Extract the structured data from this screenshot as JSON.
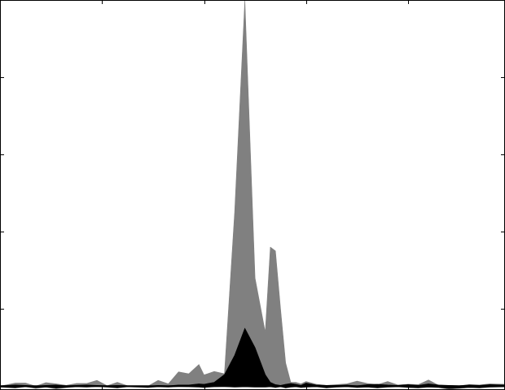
{
  "chart_data": {
    "type": "area",
    "title": "",
    "xlabel": "",
    "ylabel": "",
    "xlim": [
      0,
      99
    ],
    "ylim": [
      -1,
      100
    ],
    "grid": false,
    "legend": "none",
    "series": [
      {
        "name": "",
        "color": "#808080",
        "x": [
          0,
          3,
          5,
          7,
          9,
          11,
          13,
          15,
          17,
          19,
          21,
          23,
          25,
          27,
          29,
          31,
          33,
          35,
          37,
          39,
          40,
          42,
          44,
          46,
          48,
          50,
          52,
          53,
          54,
          55,
          56,
          57,
          58,
          59,
          60,
          62,
          64,
          66,
          68,
          70,
          72,
          74,
          76,
          78,
          80,
          82,
          84,
          86,
          88,
          90,
          92,
          94,
          96,
          99
        ],
        "upper": [
          0,
          0.8,
          0.8,
          0,
          0.9,
          0.6,
          0.2,
          0.7,
          0.7,
          1.5,
          0.1,
          1,
          0.1,
          0.1,
          0,
          1.5,
          0.6,
          3.7,
          3.2,
          5.6,
          2.9,
          3.8,
          3.2,
          45,
          100,
          28,
          14,
          36,
          35,
          20,
          6,
          1,
          1,
          0.6,
          1.2,
          0.5,
          0.2,
          0.4,
          0.6,
          1.3,
          0.7,
          0.4,
          1.2,
          0.3,
          0.5,
          0.4,
          1.6,
          0.2,
          0.2,
          0.1,
          0.4,
          0.3,
          0.6,
          0.5
        ],
        "lower": [
          -0.3,
          -0.5,
          -0.2,
          -0.6,
          -0.3,
          -0.7,
          -0.4,
          -0.2,
          -0.3,
          -0.1,
          -0.3,
          -0.5,
          -0.2,
          -0.3,
          -0.4,
          -0.2,
          -0.3,
          -0.1,
          -0.2,
          -0.3,
          -0.4,
          -0.2,
          -0.1,
          -0.3,
          -0.2,
          -0.3,
          -0.3,
          -0.2,
          -0.4,
          -0.2,
          -0.5,
          -0.3,
          -0.2,
          -0.4,
          -0.3,
          -0.2,
          -0.5,
          -0.3,
          -0.2,
          -0.4,
          -0.3,
          -0.5,
          -0.3,
          -0.2,
          -0.4,
          -0.5,
          -0.3,
          -0.4,
          -0.8,
          -0.6,
          -0.4,
          -0.5,
          -0.3,
          -0.2
        ]
      },
      {
        "name": "",
        "color": "#000000",
        "x": [
          0,
          3,
          5,
          7,
          9,
          11,
          13,
          15,
          17,
          19,
          21,
          23,
          25,
          27,
          29,
          31,
          33,
          35,
          37,
          39,
          40,
          42,
          44,
          46,
          48,
          50,
          52,
          53,
          54,
          55,
          56,
          57,
          58,
          59,
          60,
          62,
          64,
          66,
          68,
          70,
          72,
          74,
          76,
          78,
          80,
          82,
          84,
          86,
          88,
          90,
          92,
          94,
          96,
          99
        ],
        "upper": [
          0.1,
          0.3,
          0.2,
          0,
          0.2,
          0.3,
          0.1,
          0.2,
          0.3,
          0.2,
          0.1,
          0.2,
          0.1,
          0.1,
          0,
          0.2,
          0.1,
          0.3,
          0.3,
          0.6,
          0.5,
          1,
          3,
          8,
          15,
          10,
          3,
          1,
          0.4,
          0.2,
          0.5,
          0.7,
          0.5,
          0.2,
          0.8,
          0.3,
          0.2,
          0.2,
          0.3,
          0.1,
          0.4,
          0.5,
          0.3,
          0.2,
          0.4,
          0.2,
          0.6,
          0.3,
          0.2,
          0.1,
          0.3,
          0.2,
          0.4,
          0.3
        ],
        "lower": [
          -0.2,
          -0.4,
          -0.1,
          -0.4,
          -0.2,
          -0.5,
          -0.3,
          -0.1,
          -0.2,
          -0.1,
          -0.2,
          -0.4,
          -0.1,
          -0.2,
          -0.3,
          -0.1,
          -0.2,
          -0.1,
          -0.1,
          -0.2,
          -0.3,
          -0.1,
          -0.1,
          -0.2,
          -0.1,
          -0.2,
          -0.2,
          -0.1,
          -0.3,
          -0.1,
          -0.4,
          -0.2,
          -0.1,
          -0.3,
          -0.2,
          -0.1,
          -0.4,
          -0.2,
          -0.1,
          -0.3,
          -0.2,
          -0.4,
          -0.2,
          -0.1,
          -0.3,
          -0.4,
          -0.2,
          -0.3,
          -0.6,
          -0.5,
          -0.3,
          -0.4,
          -0.2,
          -0.1
        ]
      }
    ],
    "baseline": {
      "y": 0,
      "color": "#000000"
    },
    "x_ticks": [
      0,
      20,
      40,
      60,
      80,
      99
    ],
    "y_ticks": [
      0,
      20,
      40,
      60,
      80,
      100
    ]
  }
}
